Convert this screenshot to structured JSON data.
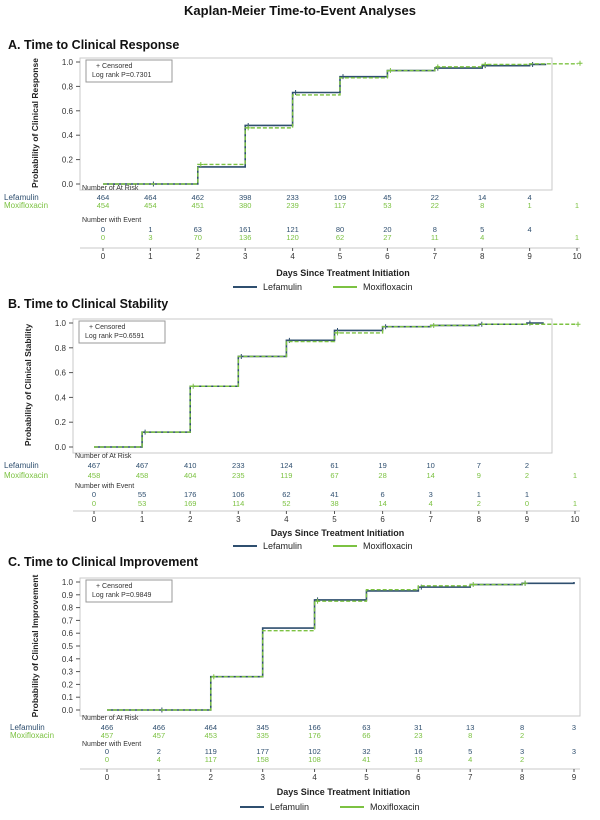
{
  "title": "Kaplan-Meier Time-to-Event Analyses",
  "colors": {
    "lefamulin": "#2f4f6f",
    "moxifloxacin": "#7cc242",
    "axis": "#555555"
  },
  "chart_data": [
    {
      "type": "line",
      "panel_title": "A. Time to Clinical Response",
      "ylabel": "Probability of Clinical Response",
      "xlabel": "Days Since Treatment Initiation",
      "xlim": [
        0,
        10
      ],
      "ylim": [
        0,
        1
      ],
      "x_ticks": [
        "0",
        "1",
        "2",
        "3",
        "4",
        "5",
        "6",
        "7",
        "8",
        "9",
        "10"
      ],
      "y_ticks": [
        "0.0",
        "0.2",
        "0.4",
        "0.6",
        "0.8",
        "1.0"
      ],
      "legend_box": [
        "+ Censored",
        "Log rank P=0.7301"
      ],
      "series": [
        {
          "name": "Lefamulin",
          "style": "solid",
          "steps": [
            [
              0,
              0
            ],
            [
              2,
              0.14
            ],
            [
              3,
              0.48
            ],
            [
              4,
              0.75
            ],
            [
              5,
              0.88
            ],
            [
              6,
              0.93
            ],
            [
              7,
              0.95
            ],
            [
              8,
              0.97
            ],
            [
              9,
              0.98
            ]
          ],
          "censored": [
            [
              1,
              0
            ],
            [
              3,
              0.48
            ],
            [
              4,
              0.75
            ],
            [
              5,
              0.88
            ],
            [
              7,
              0.95
            ],
            [
              8,
              0.97
            ],
            [
              9,
              0.98
            ]
          ]
        },
        {
          "name": "Moxifloxacin",
          "style": "dashed",
          "steps": [
            [
              0,
              0
            ],
            [
              2,
              0.16
            ],
            [
              3,
              0.46
            ],
            [
              4,
              0.73
            ],
            [
              5,
              0.87
            ],
            [
              6,
              0.93
            ],
            [
              7,
              0.96
            ],
            [
              8,
              0.98
            ],
            [
              9,
              0.985
            ],
            [
              10,
              0.99
            ]
          ],
          "censored": [
            [
              2,
              0.16
            ],
            [
              3,
              0.46
            ],
            [
              6,
              0.93
            ],
            [
              7,
              0.96
            ],
            [
              8,
              0.98
            ],
            [
              10,
              0.99
            ]
          ]
        }
      ],
      "table_headers": {
        "at_risk": "Number of At Risk",
        "events": "Number with Event"
      },
      "at_risk": [
        {
          "name": "Lefamulin",
          "values": [
            "464",
            "464",
            "462",
            "398",
            "233",
            "109",
            "45",
            "22",
            "14",
            "4",
            ""
          ]
        },
        {
          "name": "Moxifloxacin",
          "values": [
            "454",
            "454",
            "451",
            "380",
            "239",
            "117",
            "53",
            "22",
            "8",
            "1",
            "1"
          ]
        }
      ],
      "events": [
        {
          "name": "Lefamulin",
          "values": [
            "0",
            "1",
            "63",
            "161",
            "121",
            "80",
            "20",
            "8",
            "5",
            "4",
            ""
          ]
        },
        {
          "name": "Moxifloxacin",
          "values": [
            "0",
            "3",
            "70",
            "136",
            "120",
            "62",
            "27",
            "11",
            "4",
            "",
            ""
          ]
        }
      ],
      "event_extra": {
        "x": 10,
        "value": "1"
      },
      "legend": [
        "Lefamulin",
        "Moxifloxacin"
      ]
    },
    {
      "type": "line",
      "panel_title": "B. Time to Clinical Stability",
      "ylabel": "Probability of Clinical Stability",
      "xlabel": "Days Since Treatment Initiation",
      "xlim": [
        0,
        10
      ],
      "ylim": [
        0,
        1
      ],
      "x_ticks": [
        "0",
        "1",
        "2",
        "3",
        "4",
        "5",
        "6",
        "7",
        "8",
        "9",
        "10"
      ],
      "y_ticks": [
        "0.0",
        "0.2",
        "0.4",
        "0.6",
        "0.8",
        "1.0"
      ],
      "legend_box": [
        "+ Censored",
        "Log rank P=0.6591"
      ],
      "series": [
        {
          "name": "Lefamulin",
          "style": "solid",
          "steps": [
            [
              0,
              0
            ],
            [
              1,
              0.12
            ],
            [
              2,
              0.49
            ],
            [
              3,
              0.73
            ],
            [
              4,
              0.86
            ],
            [
              5,
              0.94
            ],
            [
              6,
              0.97
            ],
            [
              7,
              0.98
            ],
            [
              8,
              0.99
            ],
            [
              9,
              1.0
            ]
          ],
          "censored": [
            [
              1,
              0.12
            ],
            [
              3,
              0.73
            ],
            [
              4,
              0.86
            ],
            [
              5,
              0.94
            ],
            [
              6,
              0.97
            ],
            [
              8,
              0.99
            ],
            [
              9,
              1.0
            ]
          ]
        },
        {
          "name": "Moxifloxacin",
          "style": "dashed",
          "steps": [
            [
              0,
              0
            ],
            [
              1,
              0.12
            ],
            [
              2,
              0.49
            ],
            [
              3,
              0.73
            ],
            [
              4,
              0.85
            ],
            [
              5,
              0.92
            ],
            [
              6,
              0.97
            ],
            [
              7,
              0.98
            ],
            [
              8,
              0.99
            ],
            [
              10,
              0.99
            ]
          ],
          "censored": [
            [
              2,
              0.49
            ],
            [
              5,
              0.92
            ],
            [
              7,
              0.98
            ],
            [
              10,
              0.99
            ]
          ]
        }
      ],
      "table_headers": {
        "at_risk": "Number of At Risk",
        "events": "Number with Event"
      },
      "at_risk": [
        {
          "name": "Lefamulin",
          "values": [
            "467",
            "467",
            "410",
            "233",
            "124",
            "61",
            "19",
            "10",
            "7",
            "2",
            ""
          ]
        },
        {
          "name": "Moxifloxacin",
          "values": [
            "458",
            "458",
            "404",
            "235",
            "119",
            "67",
            "28",
            "14",
            "9",
            "2",
            "1"
          ]
        }
      ],
      "events": [
        {
          "name": "Lefamulin",
          "values": [
            "0",
            "55",
            "176",
            "106",
            "62",
            "41",
            "6",
            "3",
            "1",
            "1",
            ""
          ]
        },
        {
          "name": "Moxifloxacin",
          "values": [
            "0",
            "53",
            "169",
            "114",
            "52",
            "38",
            "14",
            "4",
            "2",
            "0",
            "1"
          ]
        }
      ],
      "legend": [
        "Lefamulin",
        "Moxifloxacin"
      ]
    },
    {
      "type": "line",
      "panel_title": "C. Time to Clinical Improvement",
      "ylabel": "Probability of Clinical Improvement",
      "xlabel": "Days Since Treatment Initiation",
      "xlim": [
        0,
        9
      ],
      "ylim": [
        0,
        1
      ],
      "x_ticks": [
        "0",
        "1",
        "2",
        "3",
        "4",
        "5",
        "6",
        "7",
        "8",
        "9"
      ],
      "y_ticks": [
        "0.0",
        "0.1",
        "0.2",
        "0.3",
        "0.4",
        "0.5",
        "0.6",
        "0.7",
        "0.8",
        "0.9",
        "1.0"
      ],
      "legend_box": [
        "+ Censored",
        "Log rank P=0.9849"
      ],
      "series": [
        {
          "name": "Lefamulin",
          "style": "solid",
          "steps": [
            [
              0,
              0
            ],
            [
              2,
              0.26
            ],
            [
              3,
              0.64
            ],
            [
              4,
              0.86
            ],
            [
              5,
              0.93
            ],
            [
              6,
              0.96
            ],
            [
              7,
              0.98
            ],
            [
              8,
              0.99
            ],
            [
              9,
              1.0
            ]
          ],
          "censored": [
            [
              1,
              0
            ],
            [
              4,
              0.86
            ],
            [
              6,
              0.96
            ],
            [
              8,
              0.99
            ]
          ]
        },
        {
          "name": "Moxifloxacin",
          "style": "dashed",
          "steps": [
            [
              0,
              0
            ],
            [
              2,
              0.26
            ],
            [
              3,
              0.62
            ],
            [
              4,
              0.85
            ],
            [
              5,
              0.94
            ],
            [
              6,
              0.97
            ],
            [
              7,
              0.98
            ],
            [
              8,
              0.99
            ]
          ],
          "censored": [
            [
              2,
              0.26
            ],
            [
              4,
              0.85
            ],
            [
              7,
              0.98
            ],
            [
              8,
              0.99
            ]
          ]
        }
      ],
      "table_headers": {
        "at_risk": "Number of At Risk",
        "events": "Number with Event"
      },
      "at_risk": [
        {
          "name": "Lefamulin",
          "values": [
            "466",
            "466",
            "464",
            "345",
            "166",
            "63",
            "31",
            "13",
            "8",
            "3"
          ]
        },
        {
          "name": "Moxifloxacin",
          "values": [
            "457",
            "457",
            "453",
            "335",
            "176",
            "66",
            "23",
            "8",
            "2",
            ""
          ]
        }
      ],
      "events": [
        {
          "name": "Lefamulin",
          "values": [
            "0",
            "2",
            "119",
            "177",
            "102",
            "32",
            "16",
            "5",
            "3",
            "3"
          ]
        },
        {
          "name": "Moxifloxacin",
          "values": [
            "0",
            "4",
            "117",
            "158",
            "108",
            "41",
            "13",
            "4",
            "2",
            ""
          ]
        }
      ],
      "legend": [
        "Lefamulin",
        "Moxifloxacin"
      ]
    }
  ]
}
